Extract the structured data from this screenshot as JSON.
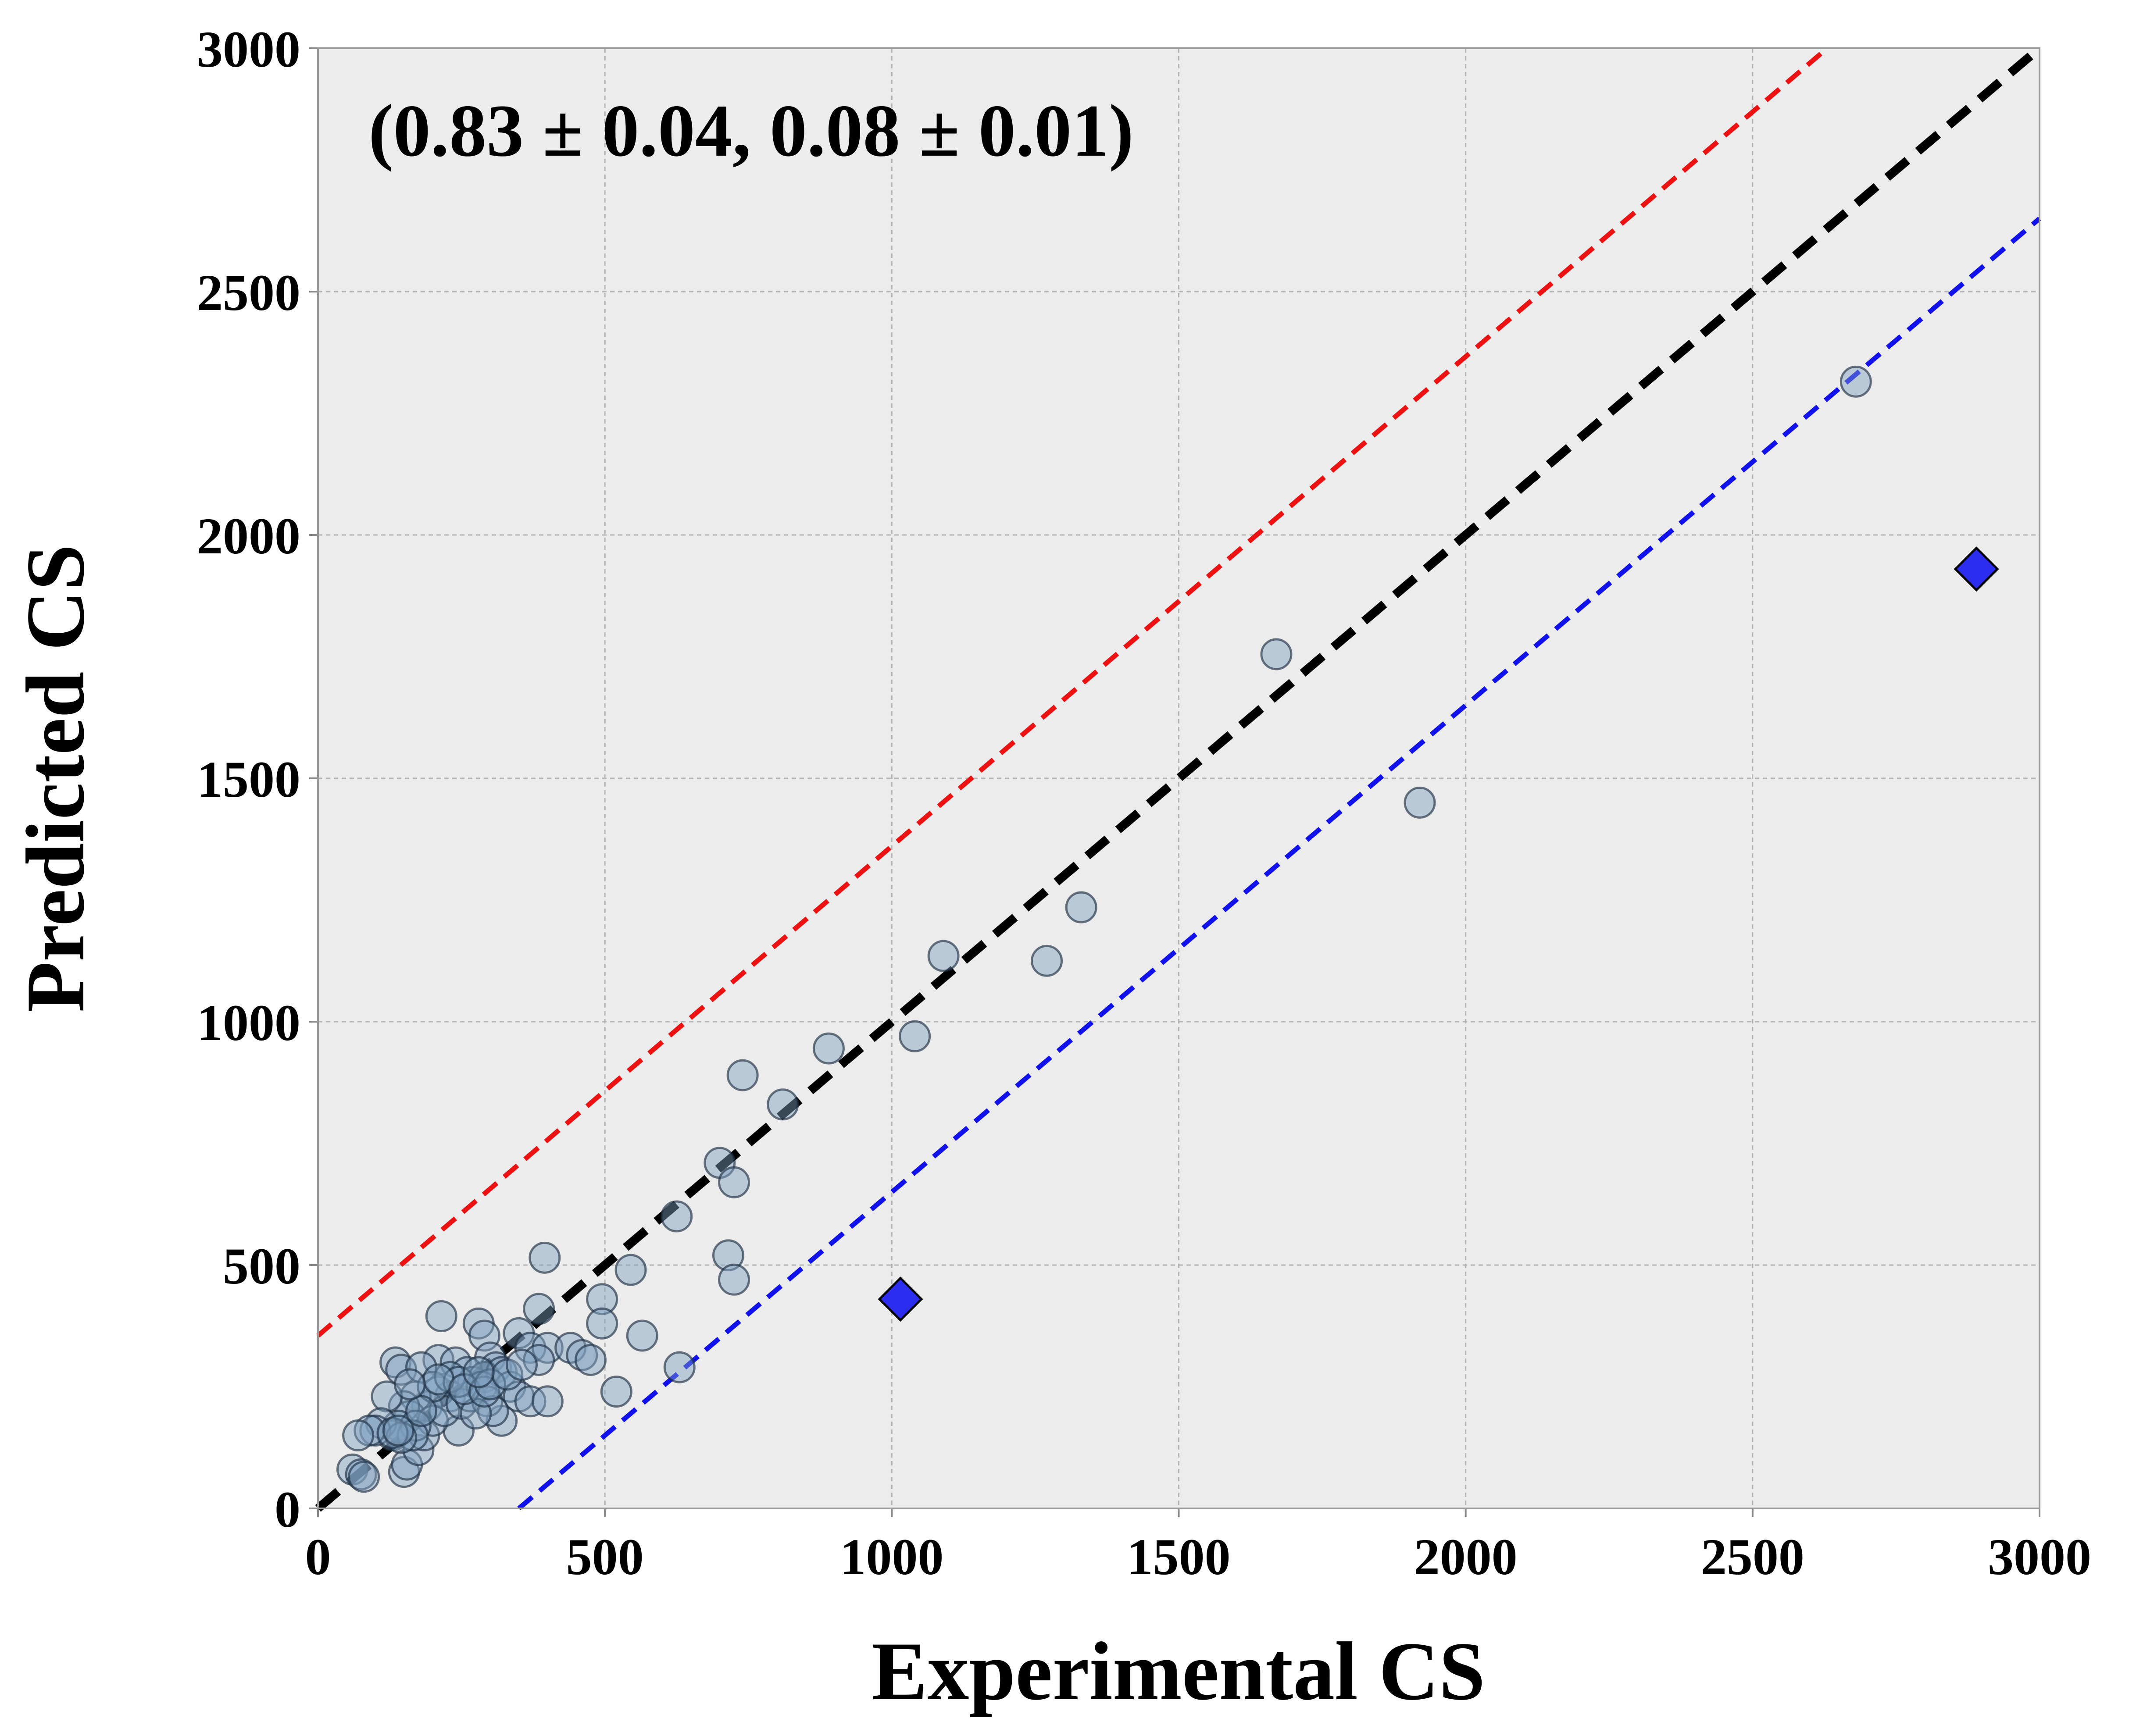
{
  "chart_data": {
    "type": "scatter",
    "title": "",
    "xlabel": "Experimental CS",
    "ylabel": "Predicted CS",
    "xlim": [
      0,
      3000
    ],
    "ylim": [
      0,
      3000
    ],
    "xticks": [
      "0",
      "500",
      "1000",
      "1500",
      "2000",
      "2500",
      "3000"
    ],
    "yticks": [
      "0",
      "500",
      "1000",
      "1500",
      "2000",
      "2500",
      "3000"
    ],
    "grid": true,
    "annotation": "(0.83 ± 0.04, 0.08 ± 0.01)",
    "colors": {
      "background": "#ececec",
      "points_fill": "#7f9fbf",
      "points_edge": "#1f2f44",
      "outlier_fill": "#2d2df0",
      "identity_line": "#000000",
      "upper_line": "#ee1111",
      "lower_line": "#1111ee"
    },
    "lines": [
      {
        "role": "identity",
        "x": [
          0,
          3000
        ],
        "y": [
          0,
          3000
        ]
      },
      {
        "role": "upper",
        "x": [
          0,
          2630
        ],
        "y": [
          355,
          3000
        ]
      },
      {
        "role": "lower",
        "x": [
          350,
          3000
        ],
        "y": [
          0,
          2650
        ]
      }
    ],
    "series": [
      {
        "marker": "circle",
        "points": [
          [
            2680,
            2315
          ],
          [
            1670,
            1755
          ],
          [
            1920,
            1450
          ],
          [
            1330,
            1235
          ],
          [
            1270,
            1125
          ],
          [
            1090,
            1135
          ],
          [
            1040,
            970
          ],
          [
            890,
            945
          ],
          [
            740,
            890
          ],
          [
            810,
            830
          ],
          [
            700,
            710
          ],
          [
            725,
            670
          ],
          [
            625,
            600
          ],
          [
            715,
            520
          ],
          [
            725,
            470
          ],
          [
            630,
            290
          ],
          [
            520,
            240
          ],
          [
            545,
            490
          ],
          [
            495,
            430
          ],
          [
            495,
            380
          ],
          [
            565,
            355
          ],
          [
            395,
            515
          ],
          [
            385,
            410
          ],
          [
            215,
            395
          ],
          [
            280,
            380
          ],
          [
            350,
            360
          ],
          [
            370,
            330
          ],
          [
            400,
            330
          ],
          [
            440,
            330
          ],
          [
            460,
            315
          ],
          [
            475,
            305
          ],
          [
            385,
            305
          ],
          [
            290,
            355
          ],
          [
            210,
            305
          ],
          [
            300,
            310
          ],
          [
            310,
            290
          ],
          [
            135,
            300
          ],
          [
            145,
            285
          ],
          [
            180,
            290
          ],
          [
            240,
            300
          ],
          [
            260,
            280
          ],
          [
            270,
            260
          ],
          [
            290,
            270
          ],
          [
            320,
            280
          ],
          [
            335,
            250
          ],
          [
            350,
            230
          ],
          [
            370,
            220
          ],
          [
            400,
            220
          ],
          [
            320,
            180
          ],
          [
            245,
            160
          ],
          [
            230,
            230
          ],
          [
            210,
            240
          ],
          [
            190,
            210
          ],
          [
            170,
            230
          ],
          [
            160,
            190
          ],
          [
            150,
            210
          ],
          [
            140,
            170
          ],
          [
            130,
            150
          ],
          [
            120,
            230
          ],
          [
            110,
            175
          ],
          [
            100,
            160
          ],
          [
            90,
            160
          ],
          [
            70,
            150
          ],
          [
            60,
            80
          ],
          [
            75,
            70
          ],
          [
            80,
            65
          ],
          [
            150,
            75
          ],
          [
            155,
            90
          ],
          [
            175,
            120
          ],
          [
            185,
            150
          ],
          [
            200,
            180
          ],
          [
            220,
            200
          ],
          [
            250,
            215
          ],
          [
            265,
            230
          ],
          [
            285,
            250
          ],
          [
            295,
            220
          ],
          [
            305,
            200
          ],
          [
            275,
            195
          ],
          [
            200,
            250
          ],
          [
            170,
            170
          ],
          [
            165,
            150
          ],
          [
            145,
            145
          ],
          [
            130,
            155
          ],
          [
            140,
            160
          ],
          [
            180,
            200
          ],
          [
            230,
            270
          ],
          [
            245,
            260
          ],
          [
            210,
            265
          ],
          [
            160,
            255
          ],
          [
            255,
            245
          ],
          [
            290,
            240
          ],
          [
            300,
            255
          ],
          [
            330,
            275
          ],
          [
            355,
            295
          ],
          [
            280,
            280
          ]
        ]
      },
      {
        "marker": "diamond",
        "points": [
          [
            1015,
            430
          ],
          [
            2890,
            1930
          ]
        ]
      }
    ]
  }
}
